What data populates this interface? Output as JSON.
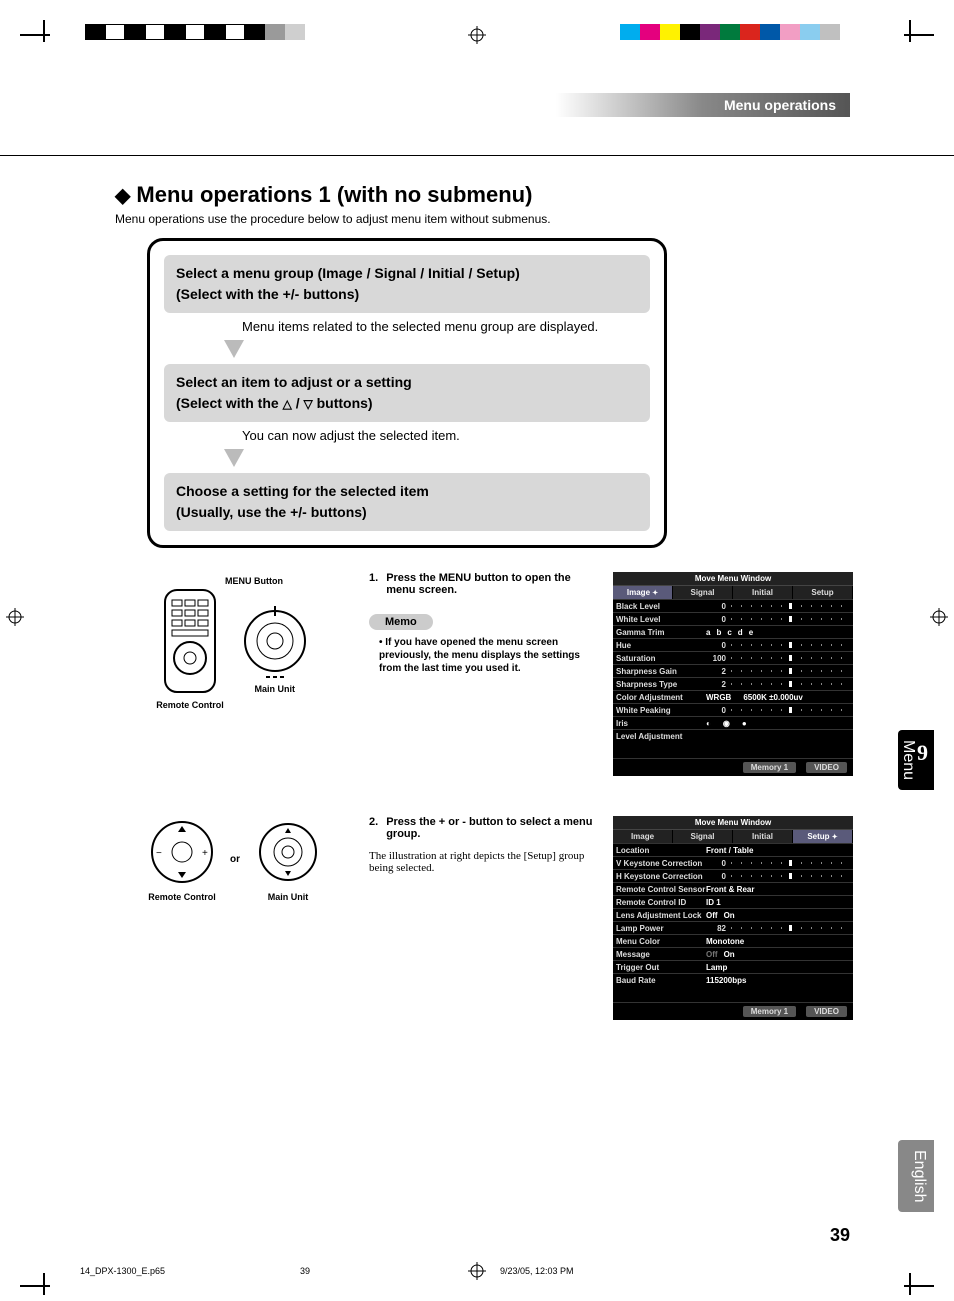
{
  "header": {
    "section": "Menu operations"
  },
  "title": {
    "main": "Menu operations 1 (with no submenu)",
    "sub": "Menu operations use the procedure below to adjust menu item without submenus."
  },
  "flow": {
    "step1a": "Select a menu group (Image / Signal / Initial / Setup)",
    "step1b": "(Select with the +/- buttons)",
    "note1": "Menu items related to the selected menu group are displayed.",
    "step2a": "Select an item to adjust or a setting",
    "step2b_pre": "(Select with the ",
    "step2b_post": " buttons)",
    "note2": "You can now adjust the selected item.",
    "step3a": "Choose a setting for the selected item",
    "step3b": "(Usually, use the +/- buttons)"
  },
  "diagrams": {
    "menu_button": "MENU Button",
    "remote": "Remote Control",
    "main_unit": "Main Unit",
    "or": "or"
  },
  "instructions": {
    "i1_num": "1.",
    "i1": "Press the MENU button to open the menu screen.",
    "memo_label": "Memo",
    "memo": "If you have opened the menu screen previously, the menu displays the settings from the last time you used it.",
    "i2_num": "2.",
    "i2": "Press the + or - button to select a menu group.",
    "i2_note": "The illustration at right depicts the [Setup] group being selected."
  },
  "osd1": {
    "title": "Move Menu Window",
    "tabs": [
      "Image",
      "Signal",
      "Initial",
      "Setup"
    ],
    "selected_tab": 0,
    "rows": [
      {
        "k": "Black Level",
        "v": "0",
        "slider": 50
      },
      {
        "k": "White Level",
        "v": "0",
        "slider": 50
      },
      {
        "k": "Gamma Trim",
        "opts": [
          "a",
          "b",
          "c",
          "d",
          "e"
        ]
      },
      {
        "k": "Hue",
        "v": "0",
        "slider": 50
      },
      {
        "k": "Saturation",
        "v": "100",
        "slider": 50
      },
      {
        "k": "Sharpness Gain",
        "v": "2",
        "slider": 50
      },
      {
        "k": "Sharpness Type",
        "v": "2",
        "slider": 50
      },
      {
        "k": "Color Adjustment",
        "opts": [
          "WRGB",
          "",
          "6500K ±0.000uv"
        ]
      },
      {
        "k": "White Peaking",
        "v": "0",
        "slider": 50
      },
      {
        "k": "Iris",
        "opts": [
          "◐",
          "",
          "◉",
          "",
          "●"
        ]
      },
      {
        "k": "Level Adjustment"
      }
    ],
    "foot": [
      "Memory 1",
      "VIDEO"
    ]
  },
  "osd2": {
    "title": "Move Menu Window",
    "tabs": [
      "Image",
      "Signal",
      "Initial",
      "Setup"
    ],
    "selected_tab": 3,
    "rows": [
      {
        "k": "Location",
        "opts": [
          "Front / Table"
        ]
      },
      {
        "k": "V Keystone Correction",
        "v": "0",
        "slider": 50
      },
      {
        "k": "H Keystone Correction",
        "v": "0",
        "slider": 50
      },
      {
        "k": "Remote Control Sensor",
        "opts": [
          "Front & Rear"
        ]
      },
      {
        "k": "Remote Control ID",
        "opts": [
          "ID 1"
        ]
      },
      {
        "k": "Lens Adjustment Lock",
        "opts": [
          "Off",
          "On"
        ]
      },
      {
        "k": "Lamp Power",
        "v": "82",
        "slider": 50
      },
      {
        "k": "Menu Color",
        "opts": [
          "Monotone"
        ]
      },
      {
        "k": "Message",
        "opts": [
          "Off",
          "On"
        ],
        "dim": 0
      },
      {
        "k": "Trigger Out",
        "opts": [
          "Lamp"
        ]
      },
      {
        "k": "Baud Rate",
        "opts": [
          "115200bps"
        ]
      }
    ],
    "foot": [
      "Memory 1",
      "VIDEO"
    ]
  },
  "sidebar": {
    "chapter_num": "9",
    "chapter": "Menu",
    "lang": "English"
  },
  "page": {
    "num": "39"
  },
  "footer": {
    "file": "14_DPX-1300_E.p65",
    "page": "39",
    "date": "9/23/05, 12:03 PM"
  },
  "colors": {
    "bar1": [
      "#000",
      "#fff",
      "#000",
      "#fff",
      "#000",
      "#fff",
      "#000",
      "#fff",
      "#000",
      "#9a9a9a",
      "#cfcfcf"
    ],
    "bar2": [
      "#00adee",
      "#e4007e",
      "#fff200",
      "#000",
      "#7a287a",
      "#007a3d",
      "#da251d",
      "#0058a8",
      "#f29ec4",
      "#8acdef",
      "#c0c0c0"
    ]
  }
}
